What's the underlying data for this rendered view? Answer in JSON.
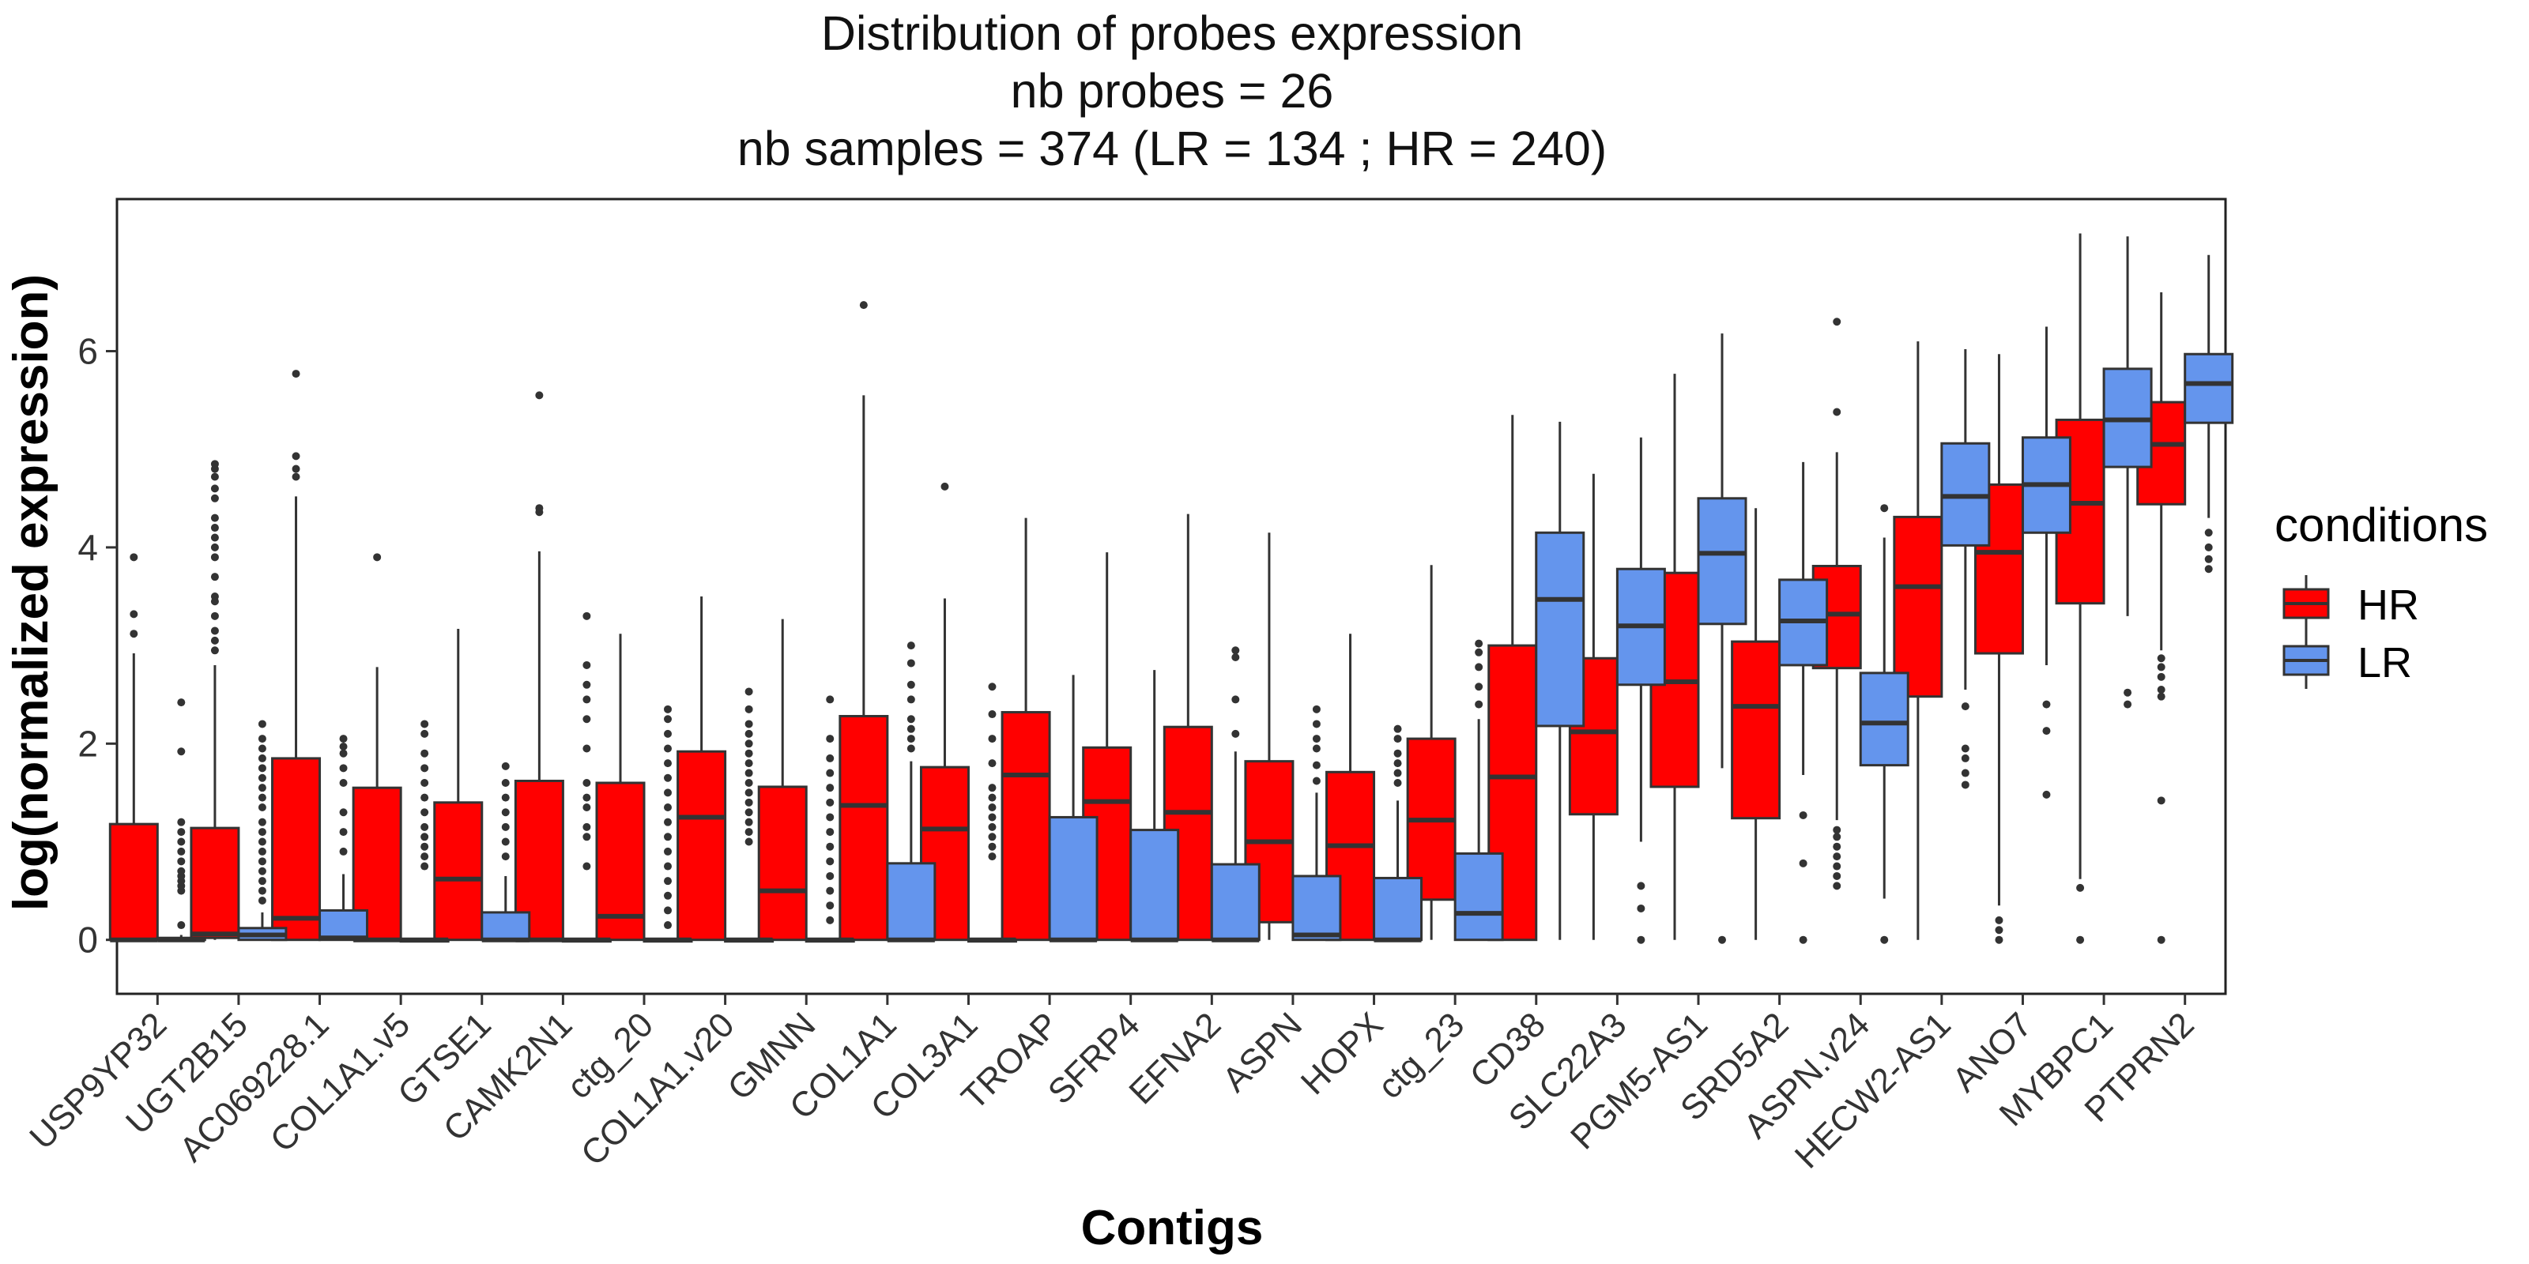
{
  "chart_data": {
    "type": "box",
    "title": "Distribution of probes expression",
    "subtitle": [
      "nb probes = 26",
      "nb samples = 374 (LR = 134 ; HR = 240)"
    ],
    "xlabel": "Contigs",
    "ylabel": "log(normalized expression)",
    "ylim": [
      -0.55,
      7.55
    ],
    "yticks": [
      0,
      2,
      4,
      6
    ],
    "grid": false,
    "legend": {
      "title": "conditions",
      "position": "right",
      "entries": [
        "HR",
        "LR"
      ]
    },
    "colors": {
      "HR": "#ff0000",
      "LR": "#6495ed"
    },
    "categories": [
      "USP9YP32",
      "UGT2B15",
      "AC069228.1",
      "COL1A1.v5",
      "GTSE1",
      "CAMK2N1",
      "ctg_20",
      "COL1A1.v20",
      "GMNN",
      "COL1A1",
      "COL3A1",
      "TROAP",
      "SFRP4",
      "EFNA2",
      "ASPN",
      "HOPX",
      "ctg_23",
      "CD38",
      "SLC22A3",
      "PGM5-AS1",
      "SRD5A2",
      "ASPN.v24",
      "HECW2-AS1",
      "ANO7",
      "MYBPC1",
      "PTPRN2"
    ],
    "series": [
      {
        "name": "HR",
        "boxes": [
          {
            "min": 0,
            "q1": 0,
            "median": 0,
            "q3": 1.18,
            "max": 2.92,
            "outliers": [
              3.12,
              3.32,
              3.9
            ]
          },
          {
            "min": 0,
            "q1": 0.02,
            "median": 0.06,
            "q3": 1.14,
            "max": 2.8,
            "outliers": [
              2.95,
              3.05,
              3.15,
              3.3,
              3.45,
              3.5,
              3.7,
              3.9,
              4.0,
              4.1,
              4.2,
              4.3,
              4.5,
              4.6,
              4.72,
              4.8,
              4.85
            ]
          },
          {
            "min": 0,
            "q1": 0,
            "median": 0.22,
            "q3": 1.85,
            "max": 4.52,
            "outliers": [
              4.72,
              4.8,
              4.93,
              5.77
            ]
          },
          {
            "min": 0,
            "q1": 0,
            "median": 0,
            "q3": 1.55,
            "max": 2.78,
            "outliers": [
              3.9
            ]
          },
          {
            "min": 0,
            "q1": 0,
            "median": 0.62,
            "q3": 1.4,
            "max": 3.17,
            "outliers": []
          },
          {
            "min": 0,
            "q1": 0,
            "median": 0,
            "q3": 1.62,
            "max": 3.96,
            "outliers": [
              4.36,
              4.4,
              5.55
            ]
          },
          {
            "min": 0,
            "q1": 0,
            "median": 0.24,
            "q3": 1.6,
            "max": 3.12,
            "outliers": []
          },
          {
            "min": 0,
            "q1": 0,
            "median": 1.25,
            "q3": 1.92,
            "max": 3.5,
            "outliers": []
          },
          {
            "min": 0,
            "q1": 0,
            "median": 0.5,
            "q3": 1.56,
            "max": 3.27,
            "outliers": []
          },
          {
            "min": 0,
            "q1": 0,
            "median": 1.37,
            "q3": 2.28,
            "max": 5.55,
            "outliers": [
              6.47
            ]
          },
          {
            "min": 0,
            "q1": 0,
            "median": 1.13,
            "q3": 1.76,
            "max": 3.48,
            "outliers": [
              4.62
            ]
          },
          {
            "min": 0,
            "q1": 0,
            "median": 1.68,
            "q3": 2.32,
            "max": 4.3,
            "outliers": []
          },
          {
            "min": 0,
            "q1": 0,
            "median": 1.41,
            "q3": 1.96,
            "max": 3.95,
            "outliers": []
          },
          {
            "min": 0,
            "q1": 0,
            "median": 1.3,
            "q3": 2.17,
            "max": 4.34,
            "outliers": []
          },
          {
            "min": 0,
            "q1": 0.18,
            "median": 1.0,
            "q3": 1.82,
            "max": 4.15,
            "outliers": []
          },
          {
            "min": 0,
            "q1": 0,
            "median": 0.96,
            "q3": 1.71,
            "max": 3.12,
            "outliers": []
          },
          {
            "min": 0,
            "q1": 0.41,
            "median": 1.22,
            "q3": 2.05,
            "max": 3.82,
            "outliers": []
          },
          {
            "min": 0,
            "q1": 0,
            "median": 1.66,
            "q3": 3.0,
            "max": 5.35,
            "outliers": []
          },
          {
            "min": 0,
            "q1": 1.28,
            "median": 2.12,
            "q3": 2.87,
            "max": 4.75,
            "outliers": []
          },
          {
            "min": 0,
            "q1": 1.56,
            "median": 2.63,
            "q3": 3.74,
            "max": 5.77,
            "outliers": []
          },
          {
            "min": 0,
            "q1": 1.24,
            "median": 2.38,
            "q3": 3.04,
            "max": 4.4,
            "outliers": []
          },
          {
            "min": 1.22,
            "q1": 2.77,
            "median": 3.32,
            "q3": 3.81,
            "max": 4.97,
            "outliers": [
              0.55,
              0.65,
              0.75,
              0.85,
              0.95,
              1.05,
              1.12,
              5.38,
              6.3
            ]
          },
          {
            "min": 0,
            "q1": 2.48,
            "median": 3.6,
            "q3": 4.31,
            "max": 6.1,
            "outliers": []
          },
          {
            "min": 0.35,
            "q1": 2.92,
            "median": 3.95,
            "q3": 4.64,
            "max": 5.97,
            "outliers": [
              0,
              0.1,
              0.2
            ]
          },
          {
            "min": 0.62,
            "q1": 3.43,
            "median": 4.45,
            "q3": 5.3,
            "max": 7.2,
            "outliers": [
              0,
              0.53
            ]
          },
          {
            "min": 2.95,
            "q1": 4.44,
            "median": 5.05,
            "q3": 5.48,
            "max": 6.6,
            "outliers": [
              0,
              1.42,
              2.48,
              2.55,
              2.68,
              2.78,
              2.87
            ]
          }
        ]
      },
      {
        "name": "LR",
        "boxes": [
          {
            "min": 0,
            "q1": 0,
            "median": 0,
            "q3": 0.02,
            "max": 0.05,
            "outliers": [
              0.15,
              0.5,
              0.55,
              0.6,
              0.65,
              0.7,
              0.8,
              0.9,
              1.0,
              1.1,
              1.2,
              1.92,
              2.42
            ]
          },
          {
            "min": 0,
            "q1": 0,
            "median": 0.05,
            "q3": 0.12,
            "max": 0.28,
            "outliers": [
              0.4,
              0.5,
              0.6,
              0.7,
              0.8,
              0.9,
              1.0,
              1.1,
              1.2,
              1.35,
              1.45,
              1.55,
              1.65,
              1.75,
              1.85,
              1.95,
              2.05,
              2.2
            ]
          },
          {
            "min": 0,
            "q1": 0,
            "median": 0.02,
            "q3": 0.3,
            "max": 0.67,
            "outliers": [
              0.9,
              1.1,
              1.3,
              1.6,
              1.75,
              1.9,
              1.97,
              2.05
            ]
          },
          {
            "min": 0,
            "q1": 0,
            "median": 0,
            "q3": 0,
            "max": 0,
            "outliers": [
              0.75,
              0.85,
              0.95,
              1.05,
              1.15,
              1.3,
              1.45,
              1.6,
              1.75,
              1.9,
              2.1,
              2.2
            ]
          },
          {
            "min": 0,
            "q1": 0,
            "median": 0,
            "q3": 0.28,
            "max": 0.65,
            "outliers": [
              0.85,
              1.0,
              1.15,
              1.3,
              1.45,
              1.6,
              1.77
            ]
          },
          {
            "min": 0,
            "q1": 0,
            "median": 0,
            "q3": 0,
            "max": 0,
            "outliers": [
              0.75,
              1.05,
              1.15,
              1.35,
              1.45,
              1.6,
              1.95,
              2.25,
              2.45,
              2.6,
              2.8,
              3.3
            ]
          },
          {
            "min": 0,
            "q1": 0,
            "median": 0,
            "q3": 0,
            "max": 0,
            "outliers": [
              0.15,
              0.3,
              0.45,
              0.6,
              0.75,
              0.9,
              1.05,
              1.2,
              1.35,
              1.5,
              1.65,
              1.8,
              1.95,
              2.1,
              2.25,
              2.35
            ]
          },
          {
            "min": 0,
            "q1": 0,
            "median": 0,
            "q3": 0,
            "max": 0,
            "outliers": [
              1.0,
              1.1,
              1.2,
              1.3,
              1.4,
              1.5,
              1.6,
              1.7,
              1.8,
              1.9,
              2.0,
              2.1,
              2.2,
              2.35,
              2.53
            ]
          },
          {
            "min": 0,
            "q1": 0,
            "median": 0,
            "q3": 0,
            "max": 0,
            "outliers": [
              0.2,
              0.35,
              0.5,
              0.65,
              0.8,
              0.95,
              1.1,
              1.25,
              1.4,
              1.55,
              1.7,
              1.85,
              2.05,
              2.45
            ]
          },
          {
            "min": 0,
            "q1": 0,
            "median": 0,
            "q3": 0.78,
            "max": 1.82,
            "outliers": [
              1.95,
              2.05,
              2.15,
              2.25,
              2.45,
              2.6,
              2.82,
              3.0
            ]
          },
          {
            "min": 0,
            "q1": 0,
            "median": 0,
            "q3": 0,
            "max": 0,
            "outliers": [
              0.85,
              0.95,
              1.05,
              1.15,
              1.25,
              1.35,
              1.45,
              1.55,
              1.8,
              2.05,
              2.3,
              2.58
            ]
          },
          {
            "min": 0,
            "q1": 0,
            "median": 0,
            "q3": 1.25,
            "max": 2.7,
            "outliers": []
          },
          {
            "min": 0,
            "q1": 0,
            "median": 0,
            "q3": 1.12,
            "max": 2.75,
            "outliers": []
          },
          {
            "min": 0,
            "q1": 0,
            "median": 0,
            "q3": 0.77,
            "max": 1.92,
            "outliers": [
              2.1,
              2.45,
              2.88,
              2.95
            ]
          },
          {
            "min": 0,
            "q1": 0,
            "median": 0.05,
            "q3": 0.65,
            "max": 1.5,
            "outliers": [
              1.62,
              1.78,
              1.95,
              2.05,
              2.2,
              2.35
            ]
          },
          {
            "min": 0,
            "q1": 0,
            "median": 0,
            "q3": 0.63,
            "max": 1.42,
            "outliers": [
              1.6,
              1.7,
              1.8,
              1.9,
              2.05,
              2.15
            ]
          },
          {
            "min": 0,
            "q1": 0,
            "median": 0.27,
            "q3": 0.88,
            "max": 2.25,
            "outliers": [
              2.4,
              2.58,
              2.78,
              2.93,
              3.02
            ]
          },
          {
            "min": 0,
            "q1": 2.18,
            "median": 3.47,
            "q3": 4.15,
            "max": 5.28,
            "outliers": []
          },
          {
            "min": 1.0,
            "q1": 2.6,
            "median": 3.2,
            "q3": 3.78,
            "max": 5.12,
            "outliers": [
              0,
              0.32,
              0.55
            ]
          },
          {
            "min": 1.75,
            "q1": 3.22,
            "median": 3.94,
            "q3": 4.5,
            "max": 6.18,
            "outliers": [
              0
            ]
          },
          {
            "min": 1.68,
            "q1": 2.8,
            "median": 3.25,
            "q3": 3.67,
            "max": 4.87,
            "outliers": [
              0,
              0.78,
              1.27
            ]
          },
          {
            "min": 0.42,
            "q1": 1.78,
            "median": 2.21,
            "q3": 2.72,
            "max": 4.1,
            "outliers": [
              0,
              4.4
            ]
          },
          {
            "min": 2.55,
            "q1": 4.02,
            "median": 4.52,
            "q3": 5.06,
            "max": 6.02,
            "outliers": [
              1.58,
              1.7,
              1.85,
              1.95,
              2.38
            ]
          },
          {
            "min": 2.8,
            "q1": 4.15,
            "median": 4.64,
            "q3": 5.12,
            "max": 6.25,
            "outliers": [
              1.48,
              2.13,
              2.4
            ]
          },
          {
            "min": 3.3,
            "q1": 4.82,
            "median": 5.3,
            "q3": 5.82,
            "max": 7.17,
            "outliers": [
              2.4,
              2.52
            ]
          },
          {
            "min": 4.3,
            "q1": 5.27,
            "median": 5.67,
            "q3": 5.97,
            "max": 6.98,
            "outliers": [
              3.78,
              3.88,
              4.0,
              4.15
            ]
          }
        ]
      }
    ]
  }
}
